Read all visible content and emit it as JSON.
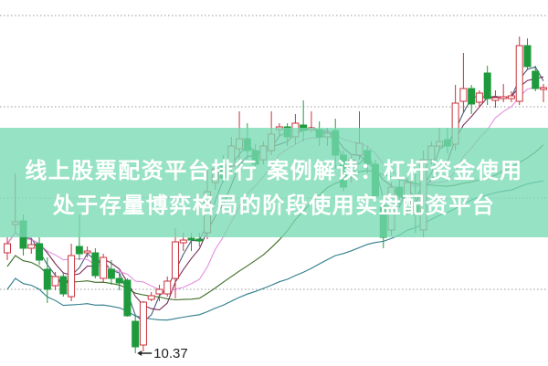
{
  "headline": {
    "line1": "线上股票配资平台排行 案例解读：杠杆资金使用",
    "line2": "处于存量博弈格局的阶段使用实盘配资平台"
  },
  "colors": {
    "up": "#c8323c",
    "down": "#1e9a3c",
    "banner": "#78dab4",
    "grid": "#999999",
    "ma_lines": [
      "#4a5f7a",
      "#7a2c5c",
      "#e58ce0",
      "#3c6e28",
      "#2f7d8c"
    ]
  },
  "chart_data": {
    "type": "candlestick",
    "grid": true,
    "grid_lines": [
      14.07,
      13.07,
      12.07,
      11.07
    ],
    "ylim": [
      10.23,
      14.24
    ],
    "annotation": {
      "label": "10.37",
      "value": 10.37,
      "candle_index": 16
    },
    "ohlc_fields": [
      "open",
      "high",
      "low",
      "close"
    ],
    "candles": [
      [
        11.47,
        11.64,
        11.39,
        11.57
      ],
      [
        11.78,
        12.34,
        11.69,
        11.81
      ],
      [
        11.82,
        11.89,
        11.44,
        11.52
      ],
      [
        11.52,
        11.62,
        11.46,
        11.56
      ],
      [
        11.57,
        11.64,
        11.34,
        11.39
      ],
      [
        11.29,
        11.42,
        10.92,
        11.07
      ],
      [
        11.11,
        11.26,
        11.06,
        11.21
      ],
      [
        11.21,
        11.26,
        10.99,
        11.02
      ],
      [
        10.99,
        11.57,
        10.94,
        11.44
      ],
      [
        11.54,
        11.89,
        11.39,
        11.46
      ],
      [
        11.47,
        11.54,
        11.42,
        11.49
      ],
      [
        11.47,
        11.52,
        11.19,
        11.22
      ],
      [
        11.19,
        11.46,
        11.14,
        11.42
      ],
      [
        11.29,
        11.39,
        11.12,
        11.19
      ],
      [
        11.19,
        11.24,
        11.06,
        11.14
      ],
      [
        11.17,
        11.19,
        10.77,
        10.78
      ],
      [
        10.72,
        10.79,
        10.37,
        10.44
      ],
      [
        10.46,
        10.94,
        10.39,
        10.93
      ],
      [
        10.96,
        11.04,
        10.94,
        11.0
      ],
      [
        11.02,
        11.12,
        10.94,
        11.07
      ],
      [
        11.02,
        11.21,
        10.99,
        11.16
      ],
      [
        11.19,
        11.74,
        10.97,
        11.59
      ],
      [
        11.58,
        11.69,
        11.49,
        11.61
      ],
      [
        11.63,
        11.69,
        11.49,
        11.61
      ],
      [
        11.62,
        11.69,
        11.54,
        11.6
      ],
      [
        11.69,
        12.39,
        11.62,
        12.14
      ],
      [
        12.24,
        12.46,
        12.16,
        12.39
      ],
      [
        12.44,
        12.54,
        12.24,
        12.29
      ],
      [
        12.42,
        12.74,
        12.36,
        12.64
      ],
      [
        12.61,
        13.02,
        12.49,
        12.72
      ],
      [
        12.72,
        12.89,
        12.49,
        12.59
      ],
      [
        12.59,
        12.66,
        12.39,
        12.44
      ],
      [
        12.49,
        12.69,
        12.44,
        12.64
      ],
      [
        12.59,
        13.02,
        12.54,
        12.77
      ],
      [
        12.82,
        12.89,
        12.74,
        12.85
      ],
      [
        12.85,
        12.89,
        12.64,
        12.74
      ],
      [
        12.74,
        12.99,
        12.66,
        12.89
      ],
      [
        12.87,
        13.14,
        12.69,
        12.81
      ],
      [
        12.82,
        13.02,
        12.79,
        12.84
      ],
      [
        12.82,
        12.91,
        12.64,
        12.74
      ],
      [
        12.74,
        12.84,
        12.64,
        12.78
      ],
      [
        12.81,
        12.94,
        12.39,
        12.54
      ],
      [
        12.54,
        12.59,
        12.14,
        12.19
      ],
      [
        12.34,
        12.54,
        12.24,
        12.49
      ],
      [
        12.54,
        13.02,
        12.49,
        12.67
      ],
      [
        12.59,
        12.64,
        12.34,
        12.44
      ],
      [
        12.44,
        12.49,
        12.02,
        12.09
      ],
      [
        11.99,
        12.09,
        11.52,
        11.64
      ],
      [
        11.72,
        12.24,
        11.66,
        12.19
      ],
      [
        12.19,
        12.29,
        11.99,
        12.09
      ],
      [
        11.94,
        12.29,
        11.89,
        12.24
      ],
      [
        11.99,
        12.34,
        11.69,
        11.89
      ],
      [
        11.72,
        12.59,
        11.64,
        12.49
      ],
      [
        12.49,
        12.69,
        12.44,
        12.64
      ],
      [
        12.64,
        12.84,
        12.59,
        12.69
      ],
      [
        12.71,
        12.84,
        12.56,
        12.64
      ],
      [
        12.66,
        13.31,
        12.59,
        13.11
      ],
      [
        13.13,
        13.66,
        13.01,
        13.27
      ],
      [
        13.27,
        13.31,
        12.99,
        13.1
      ],
      [
        13.12,
        13.25,
        13.06,
        13.22
      ],
      [
        13.44,
        13.52,
        13.09,
        13.16
      ],
      [
        13.14,
        13.25,
        13.06,
        13.17
      ],
      [
        13.16,
        13.32,
        13.12,
        13.18
      ],
      [
        13.16,
        13.24,
        13.12,
        13.19
      ],
      [
        13.13,
        13.84,
        13.09,
        13.74
      ],
      [
        13.74,
        13.82,
        13.47,
        13.51
      ],
      [
        13.46,
        13.52,
        13.24,
        13.27
      ],
      [
        13.26,
        13.32,
        13.12,
        13.28
      ]
    ]
  }
}
